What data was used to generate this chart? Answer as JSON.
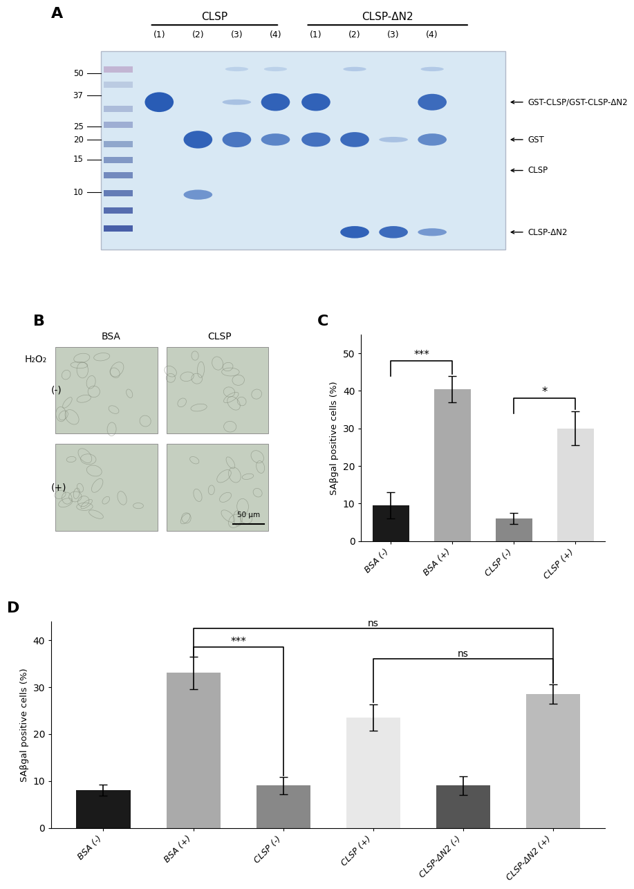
{
  "panel_A": {
    "label": "A",
    "clsp_label": "CLSP",
    "clsp_dn2_label": "CLSP-ΔN2",
    "lane_labels": [
      "(1)",
      "(2)",
      "(3)",
      "(4)",
      "(1)",
      "(2)",
      "(3)",
      "(4)"
    ],
    "mw_markers": [
      "50",
      "37",
      "25",
      "20",
      "15",
      "10"
    ],
    "annotations": [
      "GST-CLSP/GST-CLSP-ΔN2",
      "GST",
      "CLSP",
      "CLSP-ΔN2"
    ]
  },
  "panel_B": {
    "label": "B",
    "h2o2_label": "H₂O₂",
    "col_labels": [
      "BSA",
      "CLSP"
    ],
    "row_labels": [
      "(-)",
      "(+)"
    ],
    "scalebar": "50 μm"
  },
  "panel_C": {
    "label": "C",
    "categories": [
      "BSA (-)",
      "BSA (+)",
      "CLSP (-)",
      "CLSP (+)"
    ],
    "values": [
      9.5,
      40.5,
      6.0,
      30.0
    ],
    "errors": [
      3.5,
      3.5,
      1.5,
      4.5
    ],
    "bar_colors": [
      "#1a1a1a",
      "#aaaaaa",
      "#888888",
      "#dddddd"
    ],
    "ylabel": "SAβgal positive cells (%)",
    "ylim": [
      0,
      55
    ],
    "yticks": [
      0,
      10,
      20,
      30,
      40,
      50
    ]
  },
  "panel_D": {
    "label": "D",
    "categories": [
      "BSA (-)",
      "BSA (+)",
      "CLSP (-)",
      "CLSP (+)",
      "CLSP-ΔN2 (-)",
      "CLSP-ΔN2 (+)"
    ],
    "values": [
      8.0,
      33.0,
      9.0,
      23.5,
      9.0,
      28.5
    ],
    "errors": [
      1.2,
      3.5,
      1.8,
      2.8,
      2.0,
      2.0
    ],
    "bar_colors": [
      "#1a1a1a",
      "#aaaaaa",
      "#888888",
      "#e8e8e8",
      "#555555",
      "#bbbbbb"
    ],
    "ylabel": "SAβgal positive cells (%)",
    "ylim": [
      0,
      42
    ],
    "yticks": [
      0,
      10,
      20,
      30,
      40
    ]
  }
}
